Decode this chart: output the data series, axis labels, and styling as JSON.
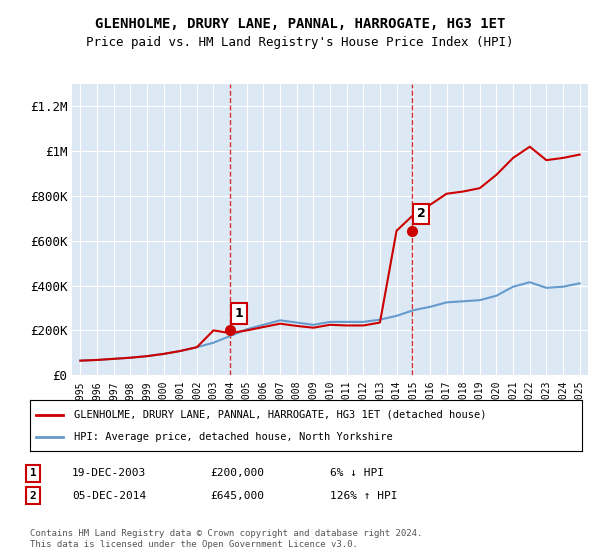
{
  "title": "GLENHOLME, DRURY LANE, PANNAL, HARROGATE, HG3 1ET",
  "subtitle": "Price paid vs. HM Land Registry's House Price Index (HPI)",
  "background_color": "#dce9f5",
  "plot_bg_color": "#dce9f5",
  "ylim": [
    0,
    1300000
  ],
  "yticks": [
    0,
    200000,
    400000,
    600000,
    800000,
    1000000,
    1200000
  ],
  "ytick_labels": [
    "£0",
    "£200K",
    "£400K",
    "£600K",
    "£800K",
    "£1M",
    "£1.2M"
  ],
  "hpi_years": [
    1995,
    1996,
    1997,
    1998,
    1999,
    2000,
    2001,
    2002,
    2003,
    2004,
    2005,
    2006,
    2007,
    2008,
    2009,
    2010,
    2011,
    2012,
    2013,
    2014,
    2015,
    2016,
    2017,
    2018,
    2019,
    2020,
    2021,
    2022,
    2023,
    2024,
    2025
  ],
  "hpi_values": [
    65000,
    68000,
    73000,
    78000,
    85000,
    95000,
    108000,
    125000,
    145000,
    175000,
    205000,
    225000,
    245000,
    235000,
    225000,
    238000,
    238000,
    238000,
    248000,
    265000,
    290000,
    305000,
    325000,
    330000,
    335000,
    355000,
    395000,
    415000,
    390000,
    395000,
    410000
  ],
  "property_years": [
    1995,
    1996,
    1997,
    1998,
    1999,
    2000,
    2001,
    2002,
    2003,
    2004,
    2005,
    2006,
    2007,
    2008,
    2009,
    2010,
    2011,
    2012,
    2013,
    2014,
    2015,
    2016,
    2017,
    2018,
    2019,
    2020,
    2021,
    2022,
    2023,
    2024,
    2025
  ],
  "property_values": [
    65000,
    68000,
    73000,
    78000,
    85000,
    95000,
    108000,
    125000,
    200000,
    188000,
    200000,
    215000,
    230000,
    220000,
    212000,
    225000,
    222000,
    222000,
    235000,
    645000,
    715000,
    760000,
    810000,
    820000,
    835000,
    895000,
    970000,
    1020000,
    960000,
    970000,
    985000
  ],
  "sale1_x": 2003.97,
  "sale1_y": 200000,
  "sale1_label": "1",
  "sale2_x": 2014.92,
  "sale2_y": 645000,
  "sale2_label": "2",
  "line_color_property": "#cc0000",
  "line_color_hpi": "#6699cc",
  "sale_marker_color": "#cc0000",
  "vline_color": "#cc0000",
  "legend_label_property": "GLENHOLME, DRURY LANE, PANNAL, HARROGATE, HG3 1ET (detached house)",
  "legend_label_hpi": "HPI: Average price, detached house, North Yorkshire",
  "table_rows": [
    {
      "num": "1",
      "date": "19-DEC-2003",
      "price": "£200,000",
      "hpi": "6% ↓ HPI"
    },
    {
      "num": "2",
      "date": "05-DEC-2014",
      "price": "£645,000",
      "hpi": "126% ↑ HPI"
    }
  ],
  "footer": "Contains HM Land Registry data © Crown copyright and database right 2024.\nThis data is licensed under the Open Government Licence v3.0.",
  "xlim_left": 1994.5,
  "xlim_right": 2025.5
}
